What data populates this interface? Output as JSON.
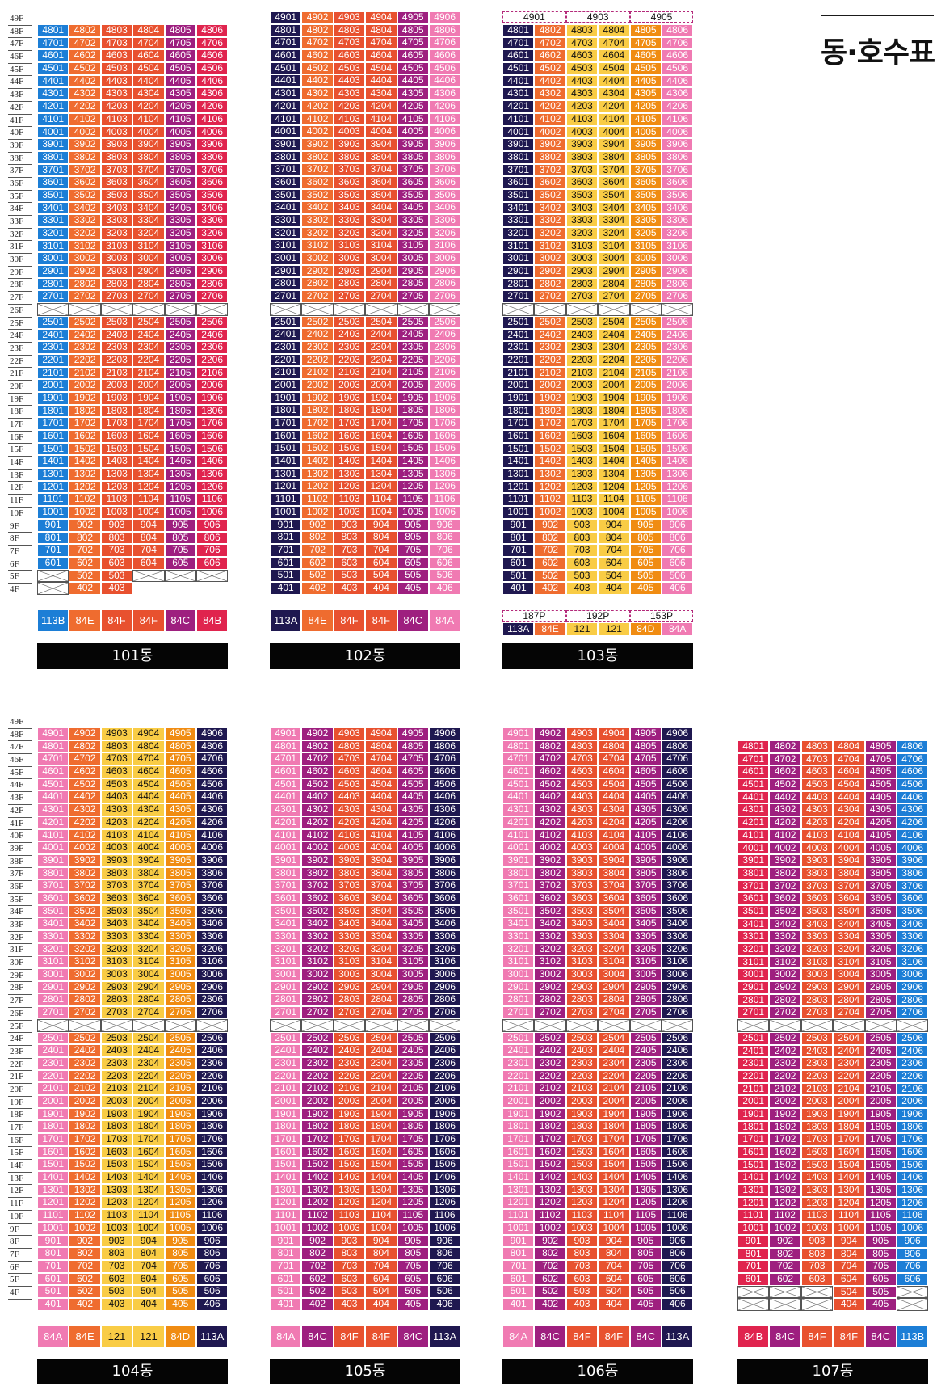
{
  "title": "동·호수표",
  "colors": {
    "113B": "#1c7ed6",
    "113A": "#1f1850",
    "84E": "#ef6c2f",
    "84F": "#e8512f",
    "84C": "#9e1f7f",
    "84B": "#e0244e",
    "84A": "#f07ab2",
    "121": "#f9cc45",
    "84D": "#f08c12",
    "void": "#ffffff"
  },
  "floor_labels_full": [
    "49F",
    "48F",
    "47F",
    "46F",
    "45F",
    "44F",
    "43F",
    "42F",
    "41F",
    "40F",
    "39F",
    "38F",
    "37F",
    "36F",
    "35F",
    "34F",
    "33F",
    "32F",
    "31F",
    "30F",
    "29F",
    "28F",
    "27F",
    "26F",
    "25F",
    "24F",
    "23F",
    "22F",
    "21F",
    "20F",
    "19F",
    "18F",
    "17F",
    "16F",
    "15F",
    "14F",
    "13F",
    "12F",
    "11F",
    "10F",
    "9F",
    "8F",
    "7F",
    "6F",
    "5F",
    "4F"
  ],
  "buildings": [
    {
      "name": "101동",
      "types": [
        "113B",
        "84E",
        "84F",
        "84F",
        "84C",
        "84B"
      ],
      "col_colors": [
        "113B",
        "84E",
        "84F",
        "84F",
        "84C",
        "84B"
      ],
      "top_floor": 48,
      "special_rows": {
        "26": "void",
        "6": [
          "601",
          "602",
          "603",
          "604",
          "605",
          "606"
        ],
        "5": [
          "x",
          "502",
          "503",
          "x",
          "x",
          "x"
        ],
        "4": [
          "x",
          "402",
          "403",
          "e",
          "e",
          "e"
        ]
      }
    },
    {
      "name": "102동",
      "types": [
        "113A",
        "84E",
        "84F",
        "84F",
        "84C",
        "84A"
      ],
      "col_colors": [
        "113A",
        "84E",
        "84F",
        "84F",
        "84C",
        "84A"
      ],
      "top_floor": 49,
      "special_rows": {
        "26": "void"
      }
    },
    {
      "name": "103동",
      "types": [
        "113A",
        "84E",
        "121",
        "121",
        "84D",
        "84A"
      ],
      "col_colors": [
        "113A",
        "84E",
        "121",
        "121",
        "84D",
        "84A"
      ],
      "top_floor": 48,
      "penthouse": [
        {
          "label": "4901",
          "span": 2
        },
        {
          "label": "4903",
          "span": 2
        },
        {
          "label": "4905",
          "span": 2
        }
      ],
      "penthouse_types": [
        {
          "label": "187P",
          "span": 2
        },
        {
          "label": "192P",
          "span": 2
        },
        {
          "label": "153P",
          "span": 2
        }
      ],
      "special_rows": {
        "26": "void"
      }
    },
    {
      "name": "104동",
      "types": [
        "84A",
        "84E",
        "121",
        "121",
        "84D",
        "113A"
      ],
      "col_colors": [
        "84A",
        "84E",
        "121",
        "121",
        "84D",
        "113A"
      ],
      "top_floor": 49,
      "special_rows": {
        "26": "void"
      }
    },
    {
      "name": "105동",
      "types": [
        "84A",
        "84C",
        "84F",
        "84F",
        "84C",
        "113A"
      ],
      "col_colors": [
        "84A",
        "84C",
        "84F",
        "84F",
        "84C",
        "113A"
      ],
      "top_floor": 49,
      "special_rows": {
        "26": "void"
      }
    },
    {
      "name": "106동",
      "types": [
        "84A",
        "84C",
        "84F",
        "84F",
        "84C",
        "113A"
      ],
      "col_colors": [
        "84A",
        "84C",
        "84F",
        "84F",
        "84C",
        "113A"
      ],
      "top_floor": 49,
      "special_rows": {
        "26": "void"
      }
    },
    {
      "name": "107동",
      "types": [
        "84B",
        "84C",
        "84F",
        "84F",
        "84C",
        "113B"
      ],
      "col_colors": [
        "84B",
        "84C",
        "84F",
        "84F",
        "84C",
        "113B"
      ],
      "top_floor": 48,
      "special_rows": {
        "26": "void",
        "5": [
          "x",
          "x",
          "x",
          "504",
          "505",
          "x"
        ],
        "4": [
          "x",
          "x",
          "x",
          "404",
          "405",
          "x"
        ]
      }
    }
  ]
}
